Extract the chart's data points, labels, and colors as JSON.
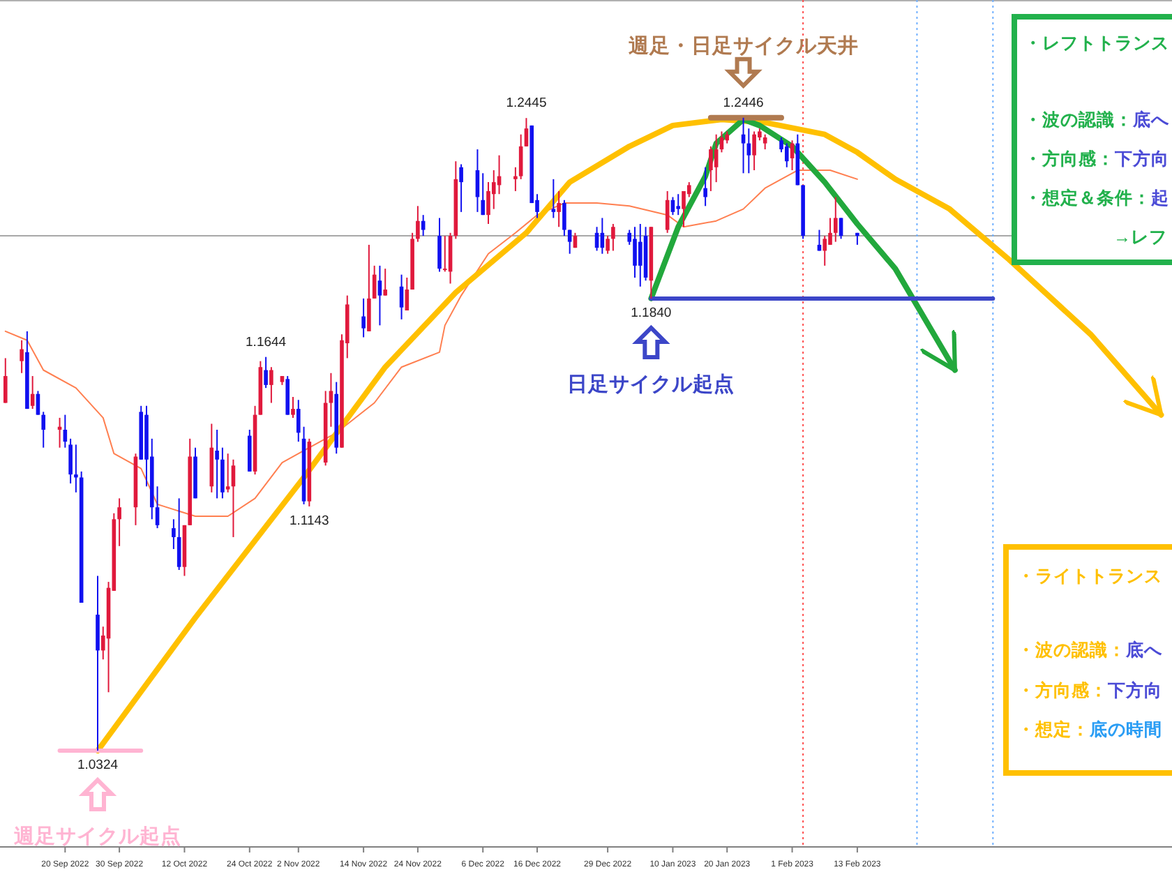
{
  "chart_data": [
    {
      "type": "candlestick",
      "tick_labels": "x",
      "x": [
        "2022-09-09",
        "2022-09-12",
        "2022-09-13",
        "2022-09-14",
        "2022-09-15",
        "2022-09-16",
        "2022-09-19",
        "2022-09-20",
        "2022-09-21",
        "2022-09-22",
        "2022-09-23",
        "2022-09-26",
        "2022-09-27",
        "2022-09-28",
        "2022-09-29",
        "2022-09-30",
        "2022-10-03",
        "2022-10-04",
        "2022-10-05",
        "2022-10-06",
        "2022-10-07",
        "2022-10-10",
        "2022-10-11",
        "2022-10-12",
        "2022-10-13",
        "2022-10-14",
        "2022-10-17",
        "2022-10-18",
        "2022-10-19",
        "2022-10-20",
        "2022-10-21",
        "2022-10-24",
        "2022-10-25",
        "2022-10-26",
        "2022-10-27",
        "2022-10-28",
        "2022-10-30",
        "2022-10-31",
        "2022-11-01",
        "2022-11-02",
        "2022-11-03",
        "2022-11-04",
        "2022-11-07",
        "2022-11-08",
        "2022-11-09",
        "2022-11-10",
        "2022-11-11",
        "2022-11-14",
        "2022-11-15",
        "2022-11-16",
        "2022-11-17",
        "2022-11-18",
        "2022-11-21",
        "2022-11-22",
        "2022-11-23",
        "2022-11-24",
        "2022-11-25",
        "2022-11-28",
        "2022-11-29",
        "2022-11-30",
        "2022-12-01",
        "2022-12-02",
        "2022-12-05",
        "2022-12-06",
        "2022-12-07",
        "2022-12-08",
        "2022-12-09",
        "2022-12-12",
        "2022-12-13",
        "2022-12-14",
        "2022-12-15",
        "2022-12-16",
        "2022-12-19",
        "2022-12-20",
        "2022-12-21",
        "2022-12-22",
        "2022-12-23",
        "2022-12-27",
        "2022-12-28",
        "2022-12-29",
        "2022-12-30",
        "2023-01-02",
        "2023-01-03",
        "2023-01-04",
        "2023-01-05",
        "2023-01-06",
        "2023-01-09",
        "2023-01-10",
        "2023-01-11",
        "2023-01-12",
        "2023-01-13",
        "2023-01-16",
        "2023-01-17",
        "2023-01-18",
        "2023-01-19",
        "2023-01-20",
        "2023-01-23",
        "2023-01-24",
        "2023-01-25",
        "2023-01-26",
        "2023-01-27",
        "2023-01-30",
        "2023-01-31",
        "2023-02-01",
        "2023-02-02",
        "2023-02-03",
        "2023-02-06",
        "2023-02-07",
        "2023-02-08",
        "2023-02-09",
        "2023-02-10",
        "2023-02-13"
      ],
      "ohlc": [
        [
          1.149,
          1.164,
          1.149,
          1.158
        ],
        [
          1.163,
          1.17,
          1.159,
          1.167
        ],
        [
          1.166,
          1.173,
          1.147,
          1.147
        ],
        [
          1.148,
          1.158,
          1.147,
          1.152
        ],
        [
          1.152,
          1.153,
          1.145,
          1.145
        ],
        [
          1.145,
          1.146,
          1.134,
          1.14
        ],
        [
          1.14,
          1.144,
          1.134,
          1.141
        ],
        [
          1.14,
          1.145,
          1.134,
          1.136
        ],
        [
          1.135,
          1.137,
          1.122,
          1.125
        ],
        [
          1.125,
          1.135,
          1.119,
          1.124
        ],
        [
          1.124,
          1.126,
          1.082,
          1.082
        ],
        [
          1.078,
          1.091,
          1.0324,
          1.066
        ],
        [
          1.066,
          1.074,
          1.063,
          1.071
        ],
        [
          1.07,
          1.089,
          1.052,
          1.087
        ],
        [
          1.086,
          1.112,
          1.086,
          1.11
        ],
        [
          1.11,
          1.117,
          1.101,
          1.114
        ],
        [
          1.114,
          1.132,
          1.108,
          1.131
        ],
        [
          1.146,
          1.148,
          1.13,
          1.13
        ],
        [
          1.145,
          1.148,
          1.121,
          1.13
        ],
        [
          1.131,
          1.137,
          1.11,
          1.114
        ],
        [
          1.114,
          1.121,
          1.107,
          1.108
        ],
        [
          1.107,
          1.11,
          1.1,
          1.104
        ],
        [
          1.104,
          1.117,
          1.093,
          1.094
        ],
        [
          1.094,
          1.108,
          1.091,
          1.108
        ],
        [
          1.108,
          1.137,
          1.108,
          1.131
        ],
        [
          1.131,
          1.134,
          1.117,
          1.117
        ],
        [
          1.121,
          1.142,
          1.119,
          1.134
        ],
        [
          1.133,
          1.14,
          1.117,
          1.13
        ],
        [
          1.13,
          1.134,
          1.117,
          1.119
        ],
        [
          1.12,
          1.132,
          1.119,
          1.121
        ],
        [
          1.121,
          1.13,
          1.104,
          1.128
        ],
        [
          1.138,
          1.14,
          1.126,
          1.126
        ],
        [
          1.126,
          1.148,
          1.125,
          1.145
        ],
        [
          1.145,
          1.163,
          1.145,
          1.161
        ],
        [
          1.16,
          1.1644,
          1.154,
          1.155
        ],
        [
          1.155,
          1.161,
          1.149,
          1.16
        ],
        [
          1.156,
          1.158,
          1.155,
          1.158
        ],
        [
          1.157,
          1.158,
          1.145,
          1.145
        ],
        [
          1.145,
          1.151,
          1.144,
          1.147
        ],
        [
          1.147,
          1.15,
          1.136,
          1.139
        ],
        [
          1.137,
          1.141,
          1.115,
          1.116
        ],
        [
          1.116,
          1.137,
          1.1143,
          1.136
        ],
        [
          1.129,
          1.153,
          1.128,
          1.149
        ],
        [
          1.149,
          1.159,
          1.141,
          1.153
        ],
        [
          1.152,
          1.156,
          1.132,
          1.134
        ],
        [
          1.134,
          1.172,
          1.134,
          1.17
        ],
        [
          1.169,
          1.185,
          1.164,
          1.182
        ],
        [
          1.178,
          1.184,
          1.171,
          1.174
        ],
        [
          1.173,
          1.202,
          1.173,
          1.184
        ],
        [
          1.184,
          1.195,
          1.184,
          1.192
        ],
        [
          1.19,
          1.195,
          1.175,
          1.185
        ],
        [
          1.185,
          1.194,
          1.185,
          1.187
        ],
        [
          1.188,
          1.192,
          1.177,
          1.181
        ],
        [
          1.18,
          1.191,
          1.18,
          1.187
        ],
        [
          1.187,
          1.206,
          1.187,
          1.204
        ],
        [
          1.204,
          1.215,
          1.203,
          1.21
        ],
        [
          1.21,
          1.212,
          1.205,
          1.207
        ],
        [
          1.205,
          1.211,
          1.193,
          1.194
        ],
        [
          1.194,
          1.205,
          1.193,
          1.194
        ],
        [
          1.193,
          1.206,
          1.189,
          1.205
        ],
        [
          1.205,
          1.23,
          1.204,
          1.224
        ],
        [
          1.228,
          1.229,
          1.213,
          1.223
        ],
        [
          1.227,
          1.234,
          1.213,
          1.218
        ],
        [
          1.217,
          1.226,
          1.212,
          1.212
        ],
        [
          1.212,
          1.223,
          1.209,
          1.22
        ],
        [
          1.219,
          1.227,
          1.214,
          1.223
        ],
        [
          1.222,
          1.232,
          1.219,
          1.225
        ],
        [
          1.224,
          1.228,
          1.22,
          1.225
        ],
        [
          1.225,
          1.239,
          1.224,
          1.235
        ],
        [
          1.235,
          1.2445,
          1.235,
          1.241
        ],
        [
          1.242,
          1.242,
          1.216,
          1.216
        ],
        [
          1.217,
          1.219,
          1.211,
          1.213
        ],
        [
          1.214,
          1.224,
          1.211,
          1.213
        ],
        [
          1.213,
          1.22,
          1.208,
          1.216
        ],
        [
          1.216,
          1.217,
          1.205,
          1.207
        ],
        [
          1.207,
          1.207,
          1.199,
          1.203
        ],
        [
          1.201,
          1.206,
          1.201,
          1.205
        ],
        [
          1.206,
          1.208,
          1.2,
          1.201
        ],
        [
          1.206,
          1.211,
          1.199,
          1.201
        ],
        [
          1.2,
          1.205,
          1.199,
          1.204
        ],
        [
          1.204,
          1.209,
          1.2,
          1.208
        ],
        [
          1.206,
          1.207,
          1.202,
          1.203
        ],
        [
          1.204,
          1.208,
          1.191,
          1.195
        ],
        [
          1.203,
          1.209,
          1.188,
          1.195
        ],
        [
          1.205,
          1.208,
          1.19,
          1.191
        ],
        [
          1.19,
          1.208,
          1.184,
          1.208
        ],
        [
          1.207,
          1.22,
          1.206,
          1.217
        ],
        [
          1.217,
          1.218,
          1.212,
          1.213
        ],
        [
          1.215,
          1.219,
          1.212,
          1.214
        ],
        [
          1.214,
          1.22,
          1.208,
          1.22
        ],
        [
          1.219,
          1.223,
          1.218,
          1.222
        ],
        [
          1.221,
          1.228,
          1.215,
          1.218
        ],
        [
          1.227,
          1.235,
          1.22,
          1.234
        ],
        [
          1.228,
          1.239,
          1.223,
          1.234
        ],
        [
          1.234,
          1.24,
          1.233,
          1.238
        ],
        [
          1.237,
          1.24,
          1.236,
          1.239
        ],
        [
          1.239,
          1.2446,
          1.226,
          1.236
        ],
        [
          1.236,
          1.241,
          1.226,
          1.232
        ],
        [
          1.232,
          1.24,
          1.227,
          1.239
        ],
        [
          1.238,
          1.241,
          1.237,
          1.24
        ],
        [
          1.236,
          1.239,
          1.234,
          1.238
        ],
        [
          1.237,
          1.238,
          1.233,
          1.234
        ],
        [
          1.235,
          1.236,
          1.228,
          1.23
        ],
        [
          1.231,
          1.237,
          1.227,
          1.236
        ],
        [
          1.236,
          1.239,
          1.222,
          1.222
        ],
        [
          1.222,
          1.222,
          1.204,
          1.205
        ],
        [
          1.202,
          1.207,
          1.2,
          1.2
        ],
        [
          1.2,
          1.205,
          1.195,
          1.204
        ],
        [
          1.202,
          1.211,
          1.202,
          1.206
        ],
        [
          1.206,
          1.218,
          1.203,
          1.211
        ],
        [
          1.211,
          1.211,
          1.204,
          1.205
        ],
        [
          1.206,
          1.206,
          1.202,
          1.205
        ]
      ],
      "series": [
        {
          "type": "line",
          "color": "#ff7f50",
          "x": [
            "2022-09-09",
            "2022-09-13",
            "2022-09-16",
            "2022-09-22",
            "2022-09-27",
            "2022-09-29",
            "2022-10-04",
            "2022-10-07",
            "2022-10-14",
            "2022-10-20",
            "2022-10-25",
            "2022-10-30",
            "2022-11-03",
            "2022-11-09",
            "2022-11-16",
            "2022-11-21",
            "2022-11-28",
            "2022-11-29",
            "2022-12-02",
            "2022-12-07",
            "2022-12-12",
            "2022-12-16",
            "2022-12-21",
            "2022-12-27",
            "2023-01-02",
            "2023-01-09",
            "2023-01-12",
            "2023-01-18",
            "2023-01-23",
            "2023-01-27",
            "2023-02-02",
            "2023-02-08",
            "2023-02-13"
          ],
          "values": [
            1.173,
            1.17,
            1.16,
            1.154,
            1.144,
            1.132,
            1.127,
            1.115,
            1.111,
            1.111,
            1.117,
            1.129,
            1.133,
            1.139,
            1.149,
            1.161,
            1.166,
            1.175,
            1.185,
            1.199,
            1.206,
            1.212,
            1.216,
            1.216,
            1.215,
            1.212,
            1.208,
            1.21,
            1.214,
            1.221,
            1.227,
            1.227,
            1.224
          ]
        },
        {
          "type": "line",
          "color": "#ffc000",
          "x": [
            "2022-09-26",
            "2022-10-14",
            "2022-11-03",
            "2022-11-18",
            "2022-12-01",
            "2022-12-14",
            "2022-12-22",
            "2023-01-02",
            "2023-01-10",
            "2023-01-19",
            "2023-01-27",
            "2023-02-07",
            "2023-02-13",
            "2023-02-20",
            "2023-03-02",
            "2023-03-13",
            "2023-03-28",
            "2023-04-10"
          ],
          "values": [
            1.0324,
            1.077,
            1.124,
            1.161,
            1.186,
            1.206,
            1.223,
            1.235,
            1.242,
            1.244,
            1.243,
            1.239,
            1.233,
            1.224,
            1.214,
            1.197,
            1.172,
            1.145
          ]
        },
        {
          "type": "line",
          "color": "#22a83c",
          "x": [
            "2023-01-06",
            "2023-01-11",
            "2023-01-16",
            "2023-01-18",
            "2023-01-23",
            "2023-01-26",
            "2023-02-01",
            "2023-02-07",
            "2023-02-13",
            "2023-02-20",
            "2023-03-03"
          ],
          "values": [
            1.184,
            1.208,
            1.225,
            1.236,
            1.244,
            1.242,
            1.235,
            1.223,
            1.209,
            1.194,
            1.16
          ]
        },
        {
          "type": "line",
          "color": "#3c46c8",
          "x": [
            "2023-01-06",
            "2023-03-10"
          ],
          "values": [
            1.184,
            1.184
          ]
        },
        {
          "type": "line",
          "color": "#b07a50",
          "x": [
            "2023-01-17",
            "2023-01-30"
          ],
          "values": [
            1.2446,
            1.2446
          ]
        },
        {
          "type": "line",
          "color": "#ffb4d2",
          "x": [
            "2022-09-19",
            "2022-10-04"
          ],
          "values": [
            1.0324,
            1.0324
          ]
        }
      ],
      "xlim": [
        "2022-09-08",
        "2023-04-12"
      ],
      "xticks": [
        {
          "value": "2022-09-20",
          "label": "20 Sep 2022"
        },
        {
          "value": "2022-09-30",
          "label": "30 Sep 2022"
        },
        {
          "value": "2022-10-12",
          "label": "12 Oct 2022"
        },
        {
          "value": "2022-10-24",
          "label": "24 Oct 2022"
        },
        {
          "value": "2022-11-02",
          "label": "2 Nov 2022"
        },
        {
          "value": "2022-11-14",
          "label": "14 Nov 2022"
        },
        {
          "value": "2022-11-24",
          "label": "24 Nov 2022"
        },
        {
          "value": "2022-12-06",
          "label": "6 Dec 2022"
        },
        {
          "value": "2022-12-16",
          "label": "16 Dec 2022"
        },
        {
          "value": "2022-12-29",
          "label": "29 Dec 2022"
        },
        {
          "value": "2023-01-10",
          "label": "10 Jan 2023"
        },
        {
          "value": "2023-01-20",
          "label": "20 Jan 2023"
        },
        {
          "value": "2023-02-01",
          "label": "1 Feb 2023"
        },
        {
          "value": "2023-02-13",
          "label": "13 Feb 2023"
        }
      ],
      "ref_lines": [
        {
          "axis": "y",
          "value": 1.205,
          "color": "#a8a8a8",
          "line_style": "solid"
        },
        {
          "axis": "x",
          "value": "2023-02-03",
          "color": "#ff5050",
          "line_style": "dotted"
        },
        {
          "axis": "x",
          "value": "2023-02-24",
          "color": "#70b0ff",
          "line_style": "dotted"
        },
        {
          "axis": "x",
          "value": "2023-03-10",
          "color": "#70b0ff",
          "line_style": "dotted"
        }
      ],
      "annotations": [
        {
          "text": "1.0324",
          "x": "2022-09-26",
          "y": 1.0324
        },
        "週足サイクル起点",
        {
          "text": "1.1644",
          "x": "2022-10-27",
          "y": 1.1644
        },
        {
          "text": "1.1143",
          "x": "2022-11-04",
          "y": 1.1143
        },
        {
          "text": "1.2445",
          "x": "2022-12-14",
          "y": 1.2445
        },
        {
          "text": "1.1840",
          "x": "2023-01-06",
          "y": 1.184
        },
        "日足サイクル起点",
        {
          "text": "1.2446",
          "x": "2023-01-23",
          "y": 1.2446
        },
        "週足・日足サイクル天井"
      ]
    },
    {
      "type": "other",
      "color": "#22b14c",
      "colors": [
        "#22b14c",
        "#4b4bd6",
        "#4b4bd6",
        "#4b4bd6",
        "#22b14c"
      ],
      "annotations": [
        "・レフトトランス",
        "・波の認識：底へ",
        "・方向感：下方向",
        "・想定＆条件：起",
        "→レフ"
      ]
    },
    {
      "type": "other",
      "color": "#ffc000",
      "colors": [
        "#ffc000",
        "#4b4bd6",
        "#4b4bd6",
        "#2a9df4"
      ],
      "annotations": [
        "・ライトトランス",
        "・波の認識：底へ",
        "・方向感：下方向",
        "・想定：底の時間"
      ]
    }
  ]
}
